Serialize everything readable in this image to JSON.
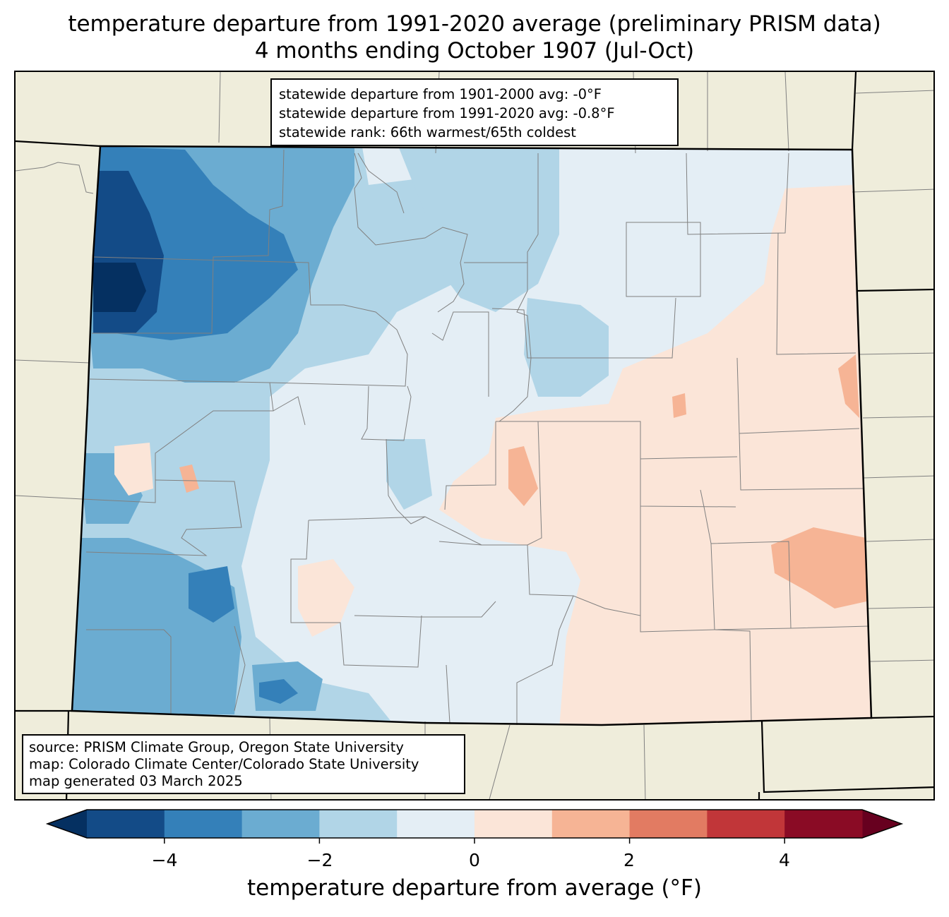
{
  "title": {
    "line1": "temperature departure from 1991-2020 average (preliminary PRISM data)",
    "line2": "4 months ending October 1907 (Jul-Oct)"
  },
  "stats": {
    "line1": "statewide departure from 1901-2000 avg: -0°F",
    "line2": "statewide departure from 1991-2020 avg: -0.8°F",
    "line3": "statewide rank: 66th warmest/65th coldest"
  },
  "source": {
    "line1": "source: PRISM Climate Group, Oregon State University",
    "line2": "map: Colorado Climate Center/Colorado State University",
    "line3": "map generated 03 March 2025"
  },
  "colorbar": {
    "label": "temperature departure from average (°F)",
    "ticks": [
      "−4",
      "−2",
      "0",
      "2",
      "4"
    ],
    "tick_values": [
      -4,
      -2,
      0,
      2,
      4
    ],
    "range": [
      -5,
      5
    ],
    "step": 1,
    "extend": "both",
    "under_color": "#053061",
    "over_color": "#67001f",
    "bin_colors": [
      "#134b87",
      "#3480b9",
      "#6bacd1",
      "#b1d5e7",
      "#e4eef5",
      "#fbe5d8",
      "#f6b495",
      "#e27b62",
      "#c13639",
      "#8a0b25"
    ]
  },
  "colors": {
    "outside_land": "#efeddb",
    "county_lines": "#808080",
    "state_lines": "#000000"
  }
}
